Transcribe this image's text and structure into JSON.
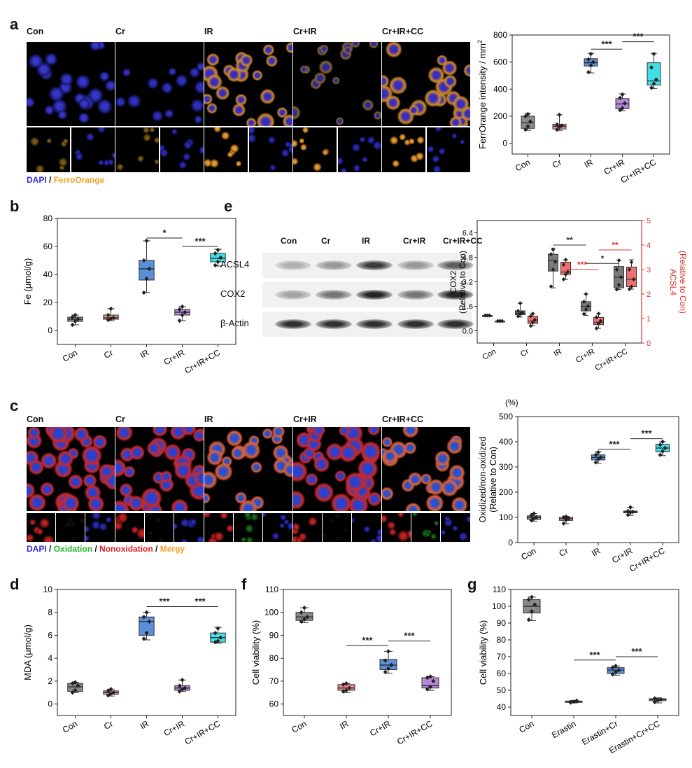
{
  "panel_a": {
    "label": "a",
    "columns": [
      "Con",
      "Cr",
      "IR",
      "Cr+IR",
      "Cr+IR+CC"
    ],
    "legend": {
      "dapi": "DAPI",
      "sep": " / ",
      "ferro": "FerroOrange"
    },
    "colors": {
      "dapi": "#2b2bd8",
      "ferro": "#f0a020"
    }
  },
  "panel_c": {
    "label": "c",
    "columns": [
      "Con",
      "Cr",
      "IR",
      "Cr+IR",
      "Cr+IR+CC"
    ],
    "legend": {
      "dapi": "DAPI",
      "sep1": " / ",
      "ox": "Oxidation",
      "sep2": " / ",
      "nonox": "Nonoxidation",
      "sep3": " / ",
      "merge": "Mergy"
    },
    "colors": {
      "dapi": "#2b2bd8",
      "ox": "#22bb22",
      "nonox": "#e02020",
      "merge": "#f0a020"
    }
  },
  "panel_e": {
    "label": "e",
    "blot_columns": [
      "Con",
      "Cr",
      "IR",
      "Cr+IR",
      "Cr+IR+CC"
    ],
    "blot_rows": [
      "ACSL4",
      "COX2",
      "β-Actin"
    ]
  },
  "labels": {
    "b": "b",
    "d": "d",
    "f": "f",
    "g": "g"
  },
  "chart_data": [
    {
      "id": "a",
      "type": "box",
      "categories": [
        "Con",
        "Cr",
        "IR",
        "Cr+IR",
        "Cr+IR+CC"
      ],
      "ylabel_main": "FerrOrange intensity / mm",
      "ylabel_sup": "2",
      "ylim": [
        -80,
        800
      ],
      "yticks": [
        0,
        200,
        400,
        600,
        800
      ],
      "colors": [
        "#8a8a8a",
        "#f08a8a",
        "#5b8fd8",
        "#b48ad8",
        "#40e0e8"
      ],
      "boxes": [
        {
          "min": 95,
          "q1": 110,
          "med": 150,
          "q3": 200,
          "max": 220,
          "pts": [
            100,
            125,
            160,
            200,
            215
          ]
        },
        {
          "min": 95,
          "q1": 105,
          "med": 125,
          "q3": 140,
          "max": 210,
          "pts": [
            100,
            120,
            130,
            138,
            210
          ]
        },
        {
          "min": 520,
          "q1": 570,
          "med": 595,
          "q3": 625,
          "max": 665,
          "pts": [
            525,
            575,
            600,
            620,
            660
          ]
        },
        {
          "min": 240,
          "q1": 255,
          "med": 290,
          "q3": 330,
          "max": 365,
          "pts": [
            245,
            260,
            295,
            335,
            360
          ]
        },
        {
          "min": 405,
          "q1": 430,
          "med": 460,
          "q3": 595,
          "max": 665,
          "pts": [
            410,
            440,
            470,
            560,
            660
          ]
        }
      ],
      "sig": [
        {
          "from": 2,
          "to": 3,
          "y": 695,
          "label": "***"
        },
        {
          "from": 3,
          "to": 4,
          "y": 750,
          "label": "***"
        }
      ]
    },
    {
      "id": "b",
      "type": "box",
      "categories": [
        "Con",
        "Cr",
        "IR",
        "Cr+IR",
        "Cr+IR+CC"
      ],
      "ylabel": "Fe (μmol/g)",
      "ylim": [
        -10,
        80
      ],
      "yticks": [
        0,
        20,
        40,
        60,
        80
      ],
      "colors": [
        "#8a8a8a",
        "#f08a8a",
        "#5b8fd8",
        "#b48ad8",
        "#40e0e8"
      ],
      "boxes": [
        {
          "min": 4,
          "q1": 6.5,
          "med": 8,
          "q3": 9.5,
          "max": 11,
          "pts": [
            4,
            6.5,
            8,
            9.5,
            11
          ]
        },
        {
          "min": 7,
          "q1": 8,
          "med": 9,
          "q3": 11,
          "max": 15.5,
          "pts": [
            7.5,
            8.5,
            9,
            11,
            15.5
          ]
        },
        {
          "min": 27,
          "q1": 36,
          "med": 44,
          "q3": 50,
          "max": 64,
          "pts": [
            27,
            37,
            44,
            50,
            64
          ]
        },
        {
          "min": 7,
          "q1": 11,
          "med": 13,
          "q3": 15,
          "max": 17,
          "pts": [
            7,
            11,
            13,
            15,
            17
          ]
        },
        {
          "min": 46,
          "q1": 49,
          "med": 51.5,
          "q3": 55,
          "max": 58,
          "pts": [
            46.5,
            49,
            52,
            55,
            57.5
          ]
        }
      ],
      "sig": [
        {
          "from": 2,
          "to": 3,
          "y": 66,
          "label": "*"
        },
        {
          "from": 3,
          "to": 4,
          "y": 60,
          "label": "***"
        }
      ]
    },
    {
      "id": "c",
      "type": "box",
      "categories": [
        "Con",
        "Cr",
        "IR",
        "Cr+IR",
        "Cr+IR+CC"
      ],
      "ylabel1": "Oxidized/non-oxidized",
      "ylabel2": "(Relative to Con)",
      "unit": "(%)",
      "ylim": [
        0,
        500
      ],
      "yticks": [
        0,
        100,
        200,
        300,
        400,
        500
      ],
      "colors": [
        "#8a8a8a",
        "#f08a8a",
        "#5b8fd8",
        "#b48ad8",
        "#40e0e8"
      ],
      "boxes": [
        {
          "min": 85,
          "q1": 92,
          "med": 100,
          "q3": 106,
          "max": 115,
          "pts": [
            88,
            95,
            100,
            108,
            115
          ]
        },
        {
          "min": 75,
          "q1": 88,
          "med": 95,
          "q3": 100,
          "max": 104,
          "pts": [
            76,
            90,
            95,
            100,
            103
          ]
        },
        {
          "min": 315,
          "q1": 328,
          "med": 338,
          "q3": 348,
          "max": 360,
          "pts": [
            318,
            330,
            338,
            348,
            358
          ]
        },
        {
          "min": 108,
          "q1": 118,
          "med": 122,
          "q3": 125,
          "max": 140,
          "pts": [
            110,
            120,
            122,
            125,
            140
          ]
        },
        {
          "min": 345,
          "q1": 360,
          "med": 375,
          "q3": 390,
          "max": 400,
          "pts": [
            348,
            362,
            375,
            388,
            400
          ]
        }
      ],
      "sig": [
        {
          "from": 2,
          "to": 3,
          "y": 370,
          "label": "***"
        },
        {
          "from": 3,
          "to": 4,
          "y": 412,
          "label": "***"
        }
      ]
    },
    {
      "id": "d",
      "type": "box",
      "categories": [
        "Con",
        "Cr",
        "IR",
        "Cr+IR",
        "Cr+IR+CC"
      ],
      "ylabel": "MDA (μmol/g)",
      "ylim": [
        -1,
        10
      ],
      "yticks": [
        0,
        2,
        4,
        6,
        8,
        10
      ],
      "colors": [
        "#8a8a8a",
        "#f08a8a",
        "#5b8fd8",
        "#b48ad8",
        "#40e0e8"
      ],
      "boxes": [
        {
          "min": 1.0,
          "q1": 1.1,
          "med": 1.5,
          "q3": 1.8,
          "max": 1.9,
          "pts": [
            1.0,
            1.2,
            1.6,
            1.8,
            1.9
          ]
        },
        {
          "min": 0.7,
          "q1": 0.85,
          "med": 1.0,
          "q3": 1.15,
          "max": 1.3,
          "pts": [
            0.75,
            0.9,
            1.0,
            1.15,
            1.3
          ]
        },
        {
          "min": 5.6,
          "q1": 6.0,
          "med": 7.2,
          "q3": 7.6,
          "max": 8.0,
          "pts": [
            5.7,
            6.2,
            7.2,
            7.6,
            8.0
          ]
        },
        {
          "min": 1.1,
          "q1": 1.2,
          "med": 1.4,
          "q3": 1.6,
          "max": 2.1,
          "pts": [
            1.1,
            1.3,
            1.4,
            1.6,
            2.1
          ]
        },
        {
          "min": 5.3,
          "q1": 5.4,
          "med": 5.8,
          "q3": 6.2,
          "max": 6.7,
          "pts": [
            5.4,
            5.5,
            5.8,
            6.2,
            6.6
          ]
        }
      ],
      "sig": [
        {
          "from": 2,
          "to": 3,
          "y": 8.5,
          "label": "***"
        },
        {
          "from": 3,
          "to": 4,
          "y": 8.5,
          "label": "***"
        }
      ]
    },
    {
      "id": "e",
      "type": "box-dual",
      "categories": [
        "Con",
        "Cr",
        "IR",
        "Cr+IR",
        "Cr+IR+CC"
      ],
      "ylabel_left1": "COX2",
      "ylabel_left2": "(Relative to Con)",
      "ylabel_right1": "ACSL4",
      "ylabel_right2": "(Relative to Con)",
      "ylim_left": [
        -0.8,
        7.2
      ],
      "yticks_left": [
        0.0,
        1.6,
        3.2,
        4.8,
        6.4
      ],
      "ytick_labels_left": [
        "0.0",
        "1.6",
        "3.2",
        "4.8",
        "6.4"
      ],
      "ylim_right": [
        0,
        5
      ],
      "yticks_right": [
        0,
        1,
        2,
        3,
        4,
        5
      ],
      "colors_left": "#7a7a7a",
      "colors_right": "#f07070",
      "right_axis_color": "#e03030",
      "boxes_left": [
        {
          "min": 1.0,
          "q1": 1.0,
          "med": 1.0,
          "q3": 1.0,
          "max": 1.0,
          "pts": [
            1.0,
            1.0,
            1.0,
            1.0
          ]
        },
        {
          "min": 0.9,
          "q1": 1.05,
          "med": 1.15,
          "q3": 1.3,
          "max": 1.8,
          "pts": [
            0.95,
            1.1,
            1.2,
            1.3,
            1.8
          ]
        },
        {
          "min": 2.8,
          "q1": 3.9,
          "med": 4.6,
          "q3": 5.0,
          "max": 5.4,
          "pts": [
            2.9,
            4.0,
            4.5,
            5.0,
            5.3
          ]
        },
        {
          "min": 1.0,
          "q1": 1.3,
          "med": 1.6,
          "q3": 1.9,
          "max": 2.4,
          "pts": [
            1.1,
            1.4,
            1.6,
            1.9,
            2.4
          ]
        },
        {
          "min": 2.7,
          "q1": 2.8,
          "med": 3.5,
          "q3": 4.2,
          "max": 4.6,
          "pts": [
            2.7,
            3.0,
            3.5,
            4.0,
            4.6
          ]
        }
      ],
      "boxes_right": [
        {
          "min": 0.9,
          "q1": 0.9,
          "med": 0.9,
          "q3": 0.9,
          "max": 0.9,
          "pts": [
            0.9,
            0.9,
            0.9
          ]
        },
        {
          "min": 0.7,
          "q1": 0.8,
          "med": 0.9,
          "q3": 1.1,
          "max": 1.2,
          "pts": [
            0.7,
            0.85,
            0.95,
            1.1,
            1.2
          ]
        },
        {
          "min": 2.6,
          "q1": 2.8,
          "med": 2.9,
          "q3": 3.3,
          "max": 3.4,
          "pts": [
            2.6,
            2.8,
            2.9,
            3.2,
            3.4
          ]
        },
        {
          "min": 0.6,
          "q1": 0.75,
          "med": 0.85,
          "q3": 1.05,
          "max": 1.2,
          "pts": [
            0.6,
            0.8,
            0.9,
            1.05,
            1.2
          ]
        },
        {
          "min": 2.2,
          "q1": 2.3,
          "med": 2.6,
          "q3": 3.1,
          "max": 3.4,
          "pts": [
            2.2,
            2.3,
            2.6,
            3.0,
            3.3
          ]
        }
      ],
      "sig_left": [
        {
          "from": 2,
          "to": 3,
          "y": 5.6,
          "label": "**",
          "color": "#333"
        },
        {
          "from": 3,
          "to": 4,
          "y": 4.4,
          "label": "*",
          "color": "#333"
        }
      ],
      "sig_right": [
        {
          "from": 2,
          "to": 3,
          "y": 3.0,
          "label": "***",
          "color": "#e03030"
        },
        {
          "from": 3,
          "to": 4,
          "y": 3.8,
          "label": "**",
          "color": "#e03030"
        }
      ]
    },
    {
      "id": "f",
      "type": "box",
      "categories": [
        "Con",
        "IR",
        "Cr+IR",
        "Cr+IR+CC"
      ],
      "ylabel": "Cell viability (%)",
      "ylim": [
        55,
        110
      ],
      "yticks": [
        60,
        70,
        80,
        90,
        100,
        110
      ],
      "colors": [
        "#8a8a8a",
        "#f08a8a",
        "#5b8fd8",
        "#b48ad8"
      ],
      "boxes": [
        {
          "min": 95.5,
          "q1": 96.5,
          "med": 98,
          "q3": 100,
          "max": 102,
          "pts": [
            96,
            97,
            98,
            100,
            102
          ]
        },
        {
          "min": 65,
          "q1": 66,
          "med": 67,
          "q3": 68.5,
          "max": 69,
          "pts": [
            65.5,
            66,
            67,
            68.5,
            69
          ]
        },
        {
          "min": 73.5,
          "q1": 75,
          "med": 77,
          "q3": 79.5,
          "max": 83,
          "pts": [
            74,
            75.5,
            77,
            79,
            83
          ]
        },
        {
          "min": 66,
          "q1": 67,
          "med": 68,
          "q3": 71.5,
          "max": 72,
          "pts": [
            66.5,
            67.5,
            70,
            71.5,
            72
          ]
        }
      ],
      "sig": [
        {
          "from": 1,
          "to": 2,
          "y": 85.5,
          "label": "***"
        },
        {
          "from": 2,
          "to": 3,
          "y": 87.5,
          "label": "***"
        }
      ]
    },
    {
      "id": "g",
      "type": "box",
      "categories": [
        "Con",
        "Erastin",
        "Erastin+Cr",
        "Erastin+Cr+CC"
      ],
      "ylabel": "Cell viability (%)",
      "ylim": [
        35,
        110
      ],
      "yticks": [
        40,
        50,
        60,
        70,
        80,
        90,
        100,
        110
      ],
      "colors": [
        "#8a8a8a",
        "#f08a8a",
        "#5b8fd8",
        "#b0b0b0"
      ],
      "boxes": [
        {
          "min": 91.5,
          "q1": 96,
          "med": 100,
          "q3": 104,
          "max": 105.5,
          "pts": [
            92,
            97,
            101,
            104,
            105.5
          ]
        },
        {
          "min": 42.5,
          "q1": 42.8,
          "med": 43.2,
          "q3": 43.6,
          "max": 44,
          "pts": [
            42.7,
            43.2,
            43.8
          ]
        },
        {
          "min": 59,
          "q1": 60,
          "med": 62,
          "q3": 63.5,
          "max": 64.5,
          "pts": [
            59.5,
            61,
            62,
            63.5,
            64.5
          ]
        },
        {
          "min": 42.5,
          "q1": 43.8,
          "med": 44.5,
          "q3": 45,
          "max": 45.5,
          "pts": [
            43,
            44,
            44.5,
            45.2
          ]
        }
      ],
      "sig": [
        {
          "from": 1,
          "to": 2,
          "y": 68,
          "label": "***"
        },
        {
          "from": 2,
          "to": 3,
          "y": 70,
          "label": "***"
        }
      ]
    }
  ]
}
